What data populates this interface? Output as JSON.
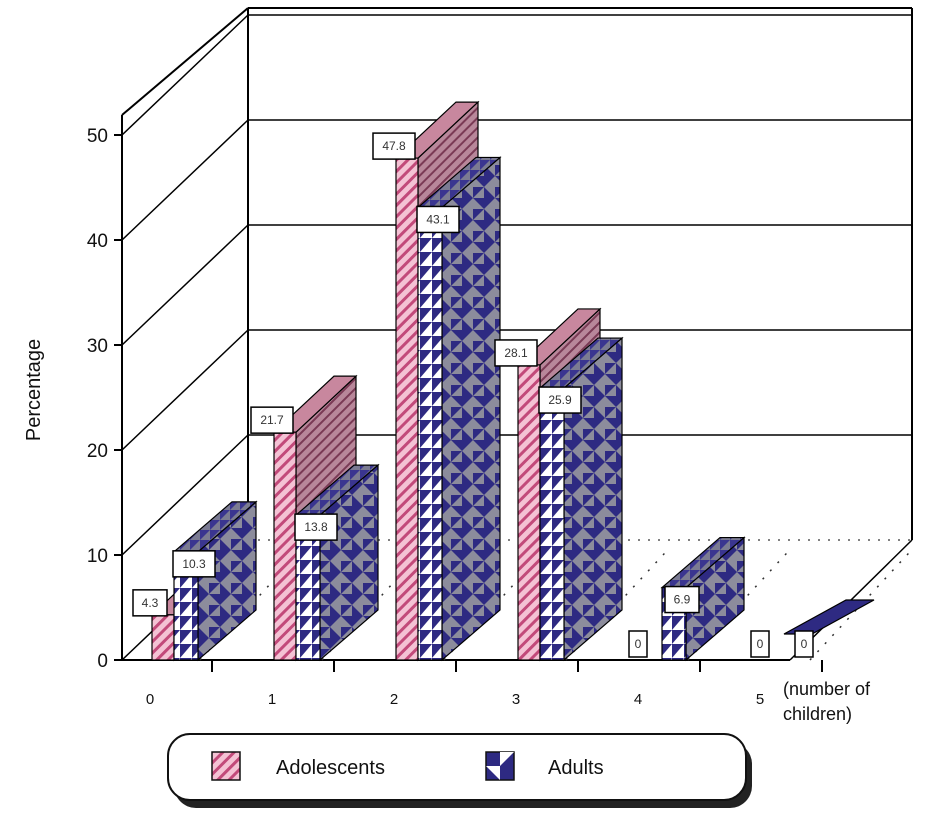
{
  "chart_data": {
    "type": "bar",
    "categories": [
      "0",
      "1",
      "2",
      "3",
      "4",
      "5"
    ],
    "series": [
      {
        "name": "Adolescents",
        "values": [
          4.3,
          21.7,
          47.8,
          28.1,
          0,
          0
        ]
      },
      {
        "name": "Adults",
        "values": [
          10.3,
          13.8,
          43.1,
          25.9,
          6.9,
          0
        ]
      }
    ],
    "value_labels": {
      "Adolescents": [
        "4.3",
        "21.7",
        "47.8",
        "28.1",
        "0",
        "0"
      ],
      "Adults": [
        "10.3",
        "13.8",
        "43.1",
        "25.9",
        "6.9",
        "0"
      ]
    },
    "ylabel": "Percentage",
    "xlabel": [
      "(number of",
      "children)"
    ],
    "y_ticks": [
      "0",
      "10",
      "20",
      "30",
      "40",
      "50"
    ],
    "ylim": [
      0,
      50
    ],
    "grid": true,
    "style": "3d-clustered",
    "legend_position": "bottom",
    "colors": {
      "adolescents_fill": "#f2b3c8",
      "adolescents_stripe": "#c24a7a",
      "adolescents_dark": "#a9697f",
      "adults_fill": "#8e8e9e",
      "adults_dark": "#2e2a82",
      "adults_white": "#ffffff",
      "wall_line": "#000000"
    }
  }
}
